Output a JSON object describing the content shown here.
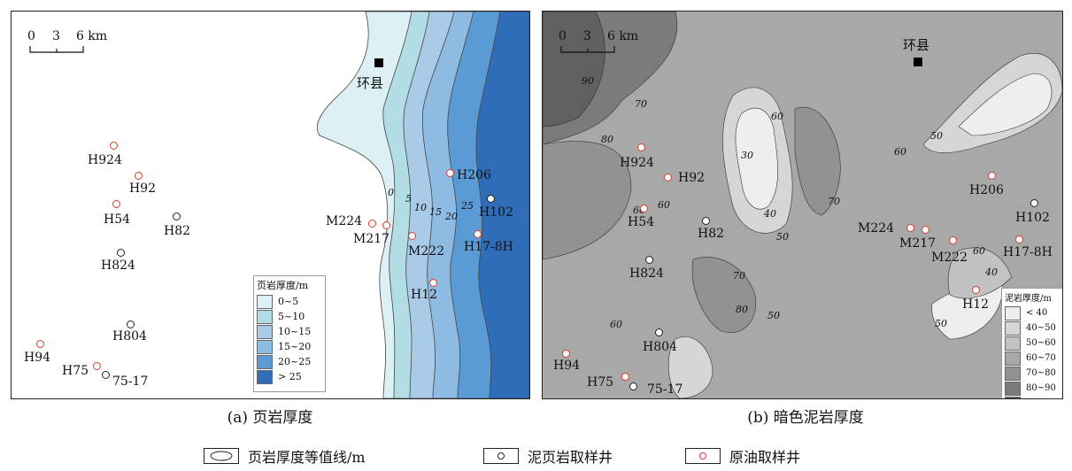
{
  "map_a": {
    "caption": "(a) 页岩厚度",
    "scale": {
      "tick0": "0",
      "tick1": "3",
      "tick2": "6 km"
    },
    "town": "环县",
    "legend_title": "页岩厚度/m",
    "legend": [
      {
        "label": "0~5",
        "color": "#dcf0f5"
      },
      {
        "label": "5~10",
        "color": "#b2dde4"
      },
      {
        "label": "10~15",
        "color": "#a9cbe8"
      },
      {
        "label": "15~20",
        "color": "#8dbbe2"
      },
      {
        "label": "20~25",
        "color": "#5b9bd5"
      },
      {
        "label": "> 25",
        "color": "#2f6db8"
      }
    ],
    "contour_labels": [
      "0",
      "5",
      "10",
      "15",
      "20",
      "25"
    ],
    "wells": {
      "H924": "H924",
      "H92": "H92",
      "H54": "H54",
      "H82": "H82",
      "H824": "H824",
      "H804": "H804",
      "H94": "H94",
      "H75": "H75",
      "75-17": "75-17",
      "M224": "M224",
      "M217": "M217",
      "M222": "M222",
      "H12": "H12",
      "H206": "H206",
      "H102": "H102",
      "H17-8H": "H17-8H"
    }
  },
  "map_b": {
    "caption": "(b) 暗色泥岩厚度",
    "scale": {
      "tick0": "0",
      "tick1": "3",
      "tick2": "6 km"
    },
    "town": "环县",
    "legend_title": "泥岩厚度/m",
    "legend": [
      {
        "label": "< 40",
        "color": "#eeeeee"
      },
      {
        "label": "40~50",
        "color": "#d6d6d6"
      },
      {
        "label": "50~60",
        "color": "#c2c2c2"
      },
      {
        "label": "60~70",
        "color": "#a8a8a8"
      },
      {
        "label": "70~80",
        "color": "#929292"
      },
      {
        "label": "80~90",
        "color": "#7b7b7b"
      },
      {
        "label": "> 90",
        "color": "#606060"
      }
    ],
    "contour_labels": {
      "c90": "90",
      "c70a": "70",
      "c80": "80",
      "c60a": "60",
      "c30": "30",
      "c60b": "60",
      "c40a": "40",
      "c70b": "70",
      "c50a": "50",
      "c50b": "50",
      "c60c": "60",
      "c60d": "60",
      "c40b": "40",
      "c60e": "60",
      "c70c": "70",
      "c80b": "80",
      "c50c": "50",
      "c60f": "60",
      "c50d": "50"
    },
    "wells": {
      "H924": "H924",
      "H92": "H92",
      "H54": "H54",
      "H82": "H82",
      "H824": "H824",
      "H804": "H804",
      "H94": "H94",
      "H75": "H75",
      "75-17": "75-17",
      "M224": "M224",
      "M217": "M217",
      "M222": "M222",
      "H12": "H12",
      "H206": "H206",
      "H102": "H102",
      "H17-8H": "H17-8H"
    }
  },
  "bottom_legend": {
    "contour": "页岩厚度等值线/m",
    "contour_sample": "10",
    "shale_well": "泥页岩取样井",
    "oil_well": "原油取样井"
  }
}
